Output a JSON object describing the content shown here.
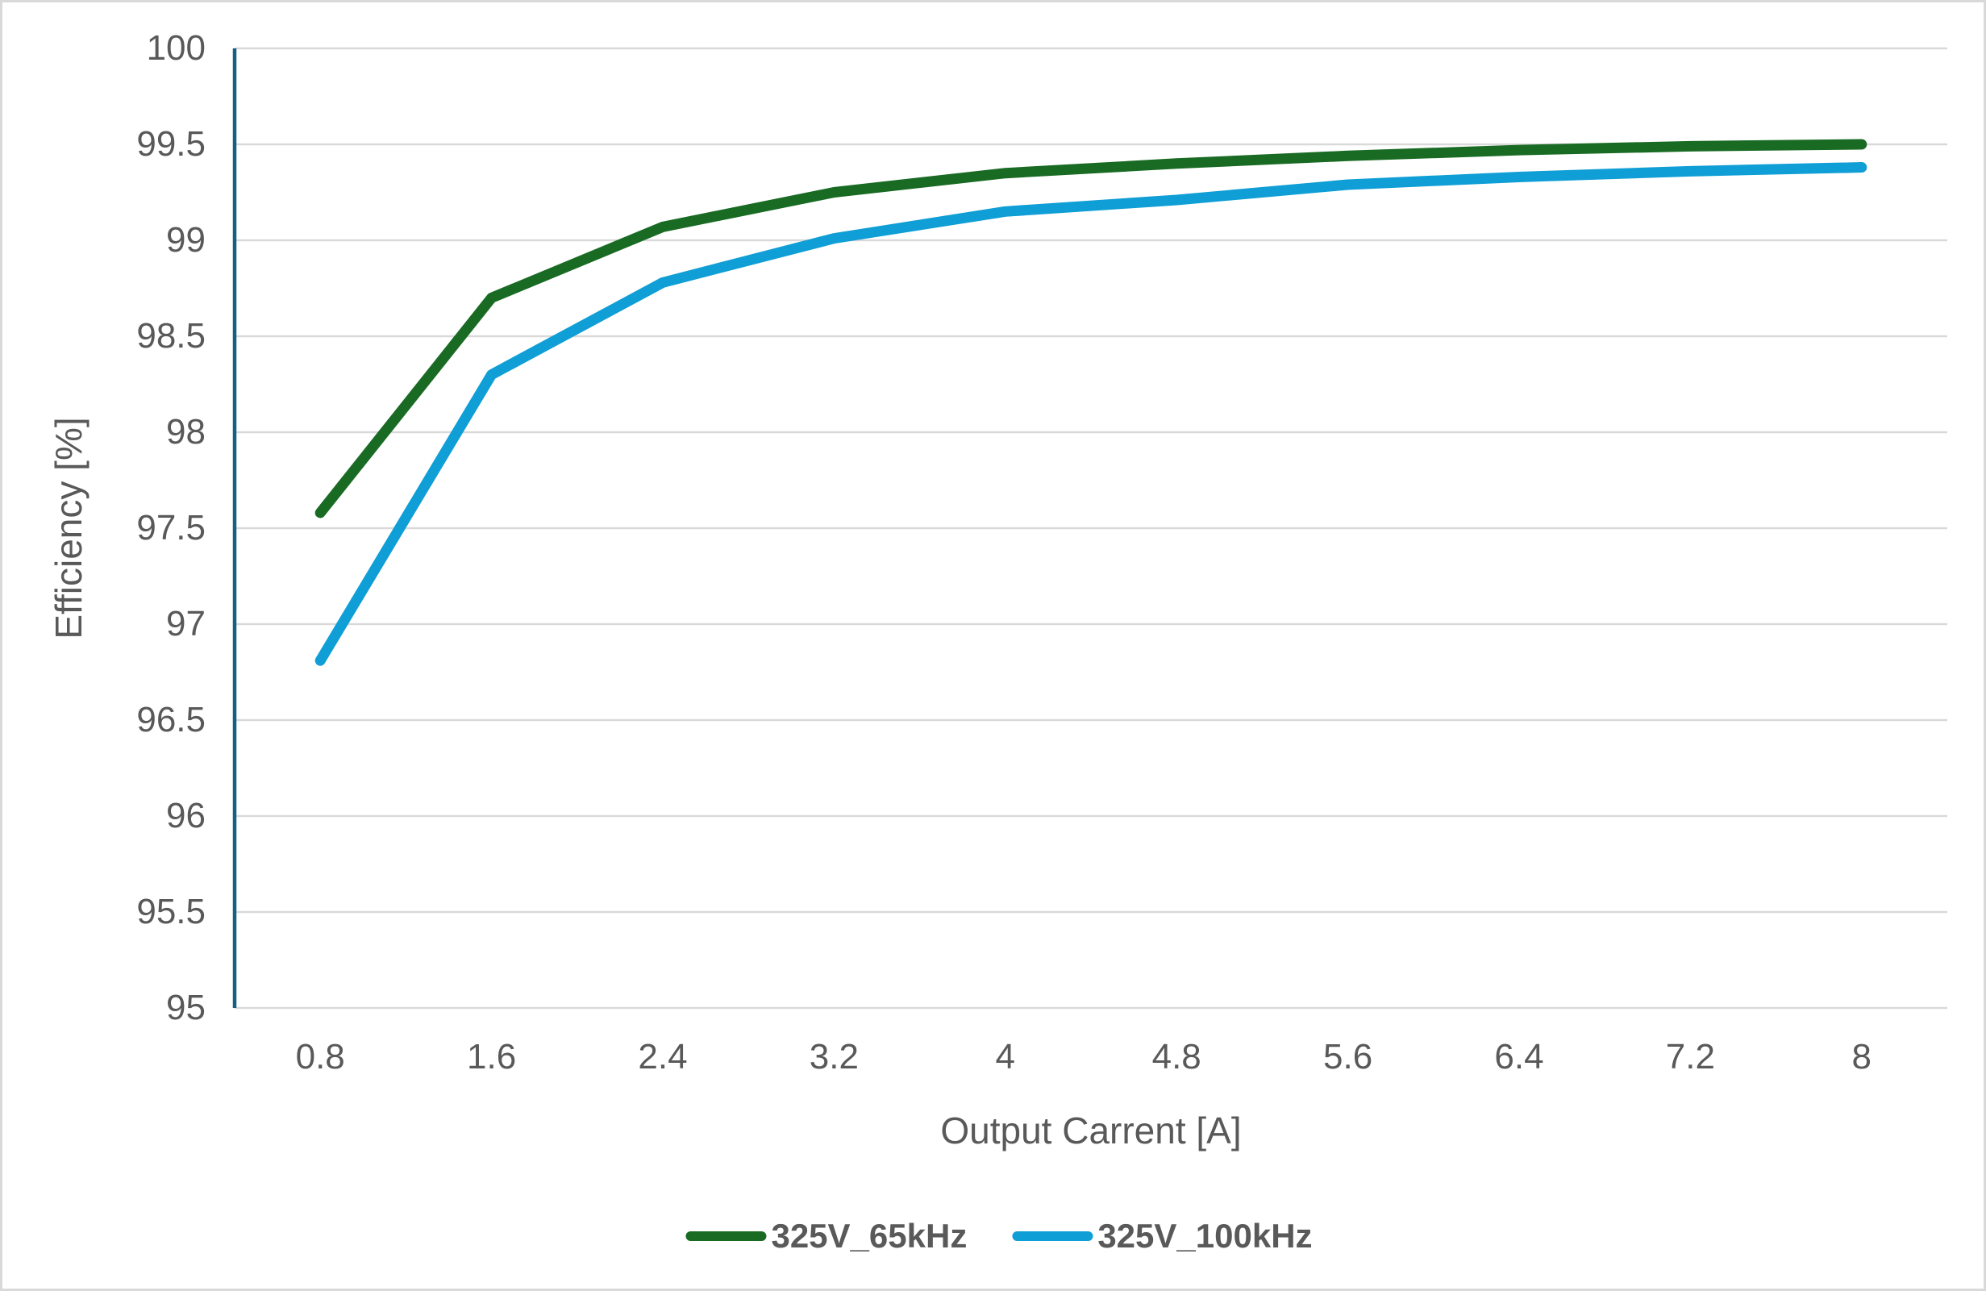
{
  "chart_data": {
    "type": "line",
    "title": "",
    "xlabel": "Output Carrent [A]",
    "ylabel": "Efficiency [%]",
    "x": [
      0.8,
      1.6,
      2.4,
      3.2,
      4,
      4.8,
      5.6,
      6.4,
      7.2,
      8
    ],
    "xtick_labels": [
      "0.8",
      "1.6",
      "2.4",
      "3.2",
      "4",
      "4.8",
      "5.6",
      "6.4",
      "7.2",
      "8"
    ],
    "ytick_labels": [
      "100",
      "99.5",
      "99",
      "98.5",
      "98",
      "97.5",
      "97",
      "96.5",
      "96",
      "95.5",
      "95"
    ],
    "ylim": [
      95,
      100
    ],
    "ytick_step": 0.5,
    "grid": true,
    "legend_position": "bottom-center",
    "series": [
      {
        "name": "325V_65kHz",
        "color": "#196B24",
        "values": [
          97.58,
          98.7,
          99.07,
          99.25,
          99.35,
          99.4,
          99.44,
          99.47,
          99.49,
          99.5
        ]
      },
      {
        "name": "325V_100kHz",
        "color": "#0F9ED5",
        "values": [
          96.81,
          98.3,
          98.78,
          99.01,
          99.15,
          99.21,
          99.29,
          99.33,
          99.36,
          99.38
        ]
      }
    ],
    "colors": {
      "gridline": "#D9D9D9",
      "y_axis_line": "#156082",
      "tick_text": "#595959",
      "background": "#FFFFFF",
      "border": "#D9D9D9"
    }
  }
}
